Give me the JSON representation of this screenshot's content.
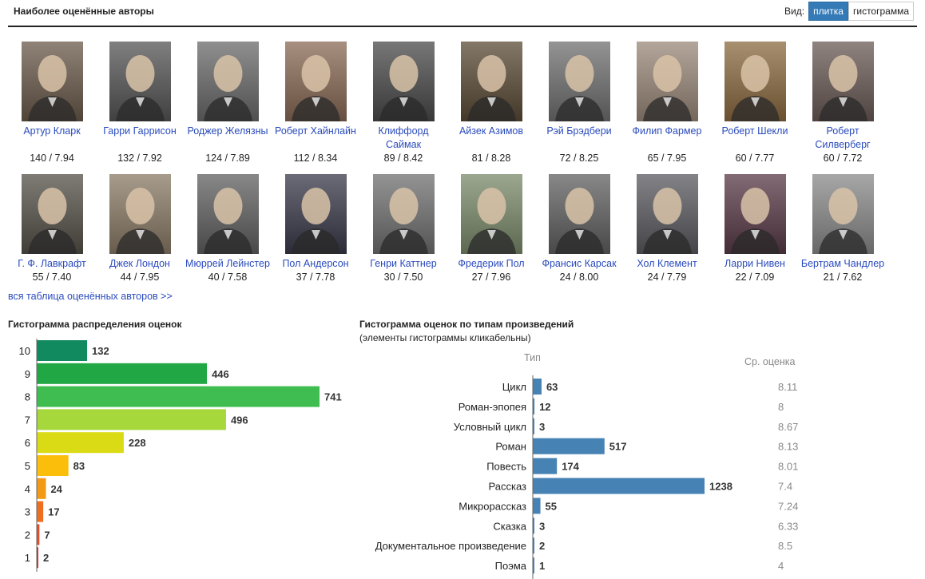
{
  "header": {
    "title": "Наиболее оценённые авторы",
    "view_label": "Вид:",
    "view_tile": "плитка",
    "view_hist": "гистограмма"
  },
  "authors": [
    {
      "name": "Артур Кларк",
      "score": "140 / 7.94",
      "tone": "#6a5a4a"
    },
    {
      "name": "Гарри Гаррисон",
      "score": "132 / 7.92",
      "tone": "#555555"
    },
    {
      "name": "Роджер Желязны",
      "score": "124 / 7.89",
      "tone": "#6a6a6a"
    },
    {
      "name": "Роберт Хайнлайн",
      "score": "112 / 8.34",
      "tone": "#8a6a55"
    },
    {
      "name": "Клиффорд Саймак",
      "score": "89 / 8.42",
      "tone": "#4a4a4a"
    },
    {
      "name": "Айзек Азимов",
      "score": "81 / 8.28",
      "tone": "#5a4a35"
    },
    {
      "name": "Рэй Брэдбери",
      "score": "72 / 8.25",
      "tone": "#707070"
    },
    {
      "name": "Филип Фармер",
      "score": "65 / 7.95",
      "tone": "#9a8878"
    },
    {
      "name": "Роберт Шекли",
      "score": "60 / 7.77",
      "tone": "#8a6a40"
    },
    {
      "name": "Роберт Силверберг",
      "score": "60 / 7.72",
      "tone": "#6a5a55"
    },
    {
      "name": "Г. Ф. Лавкрафт",
      "score": "55 / 7.40",
      "tone": "#555048"
    },
    {
      "name": "Джек Лондон",
      "score": "44 / 7.95",
      "tone": "#8a7a66"
    },
    {
      "name": "Мюррей Лейнстер",
      "score": "40 / 7.58",
      "tone": "#606060"
    },
    {
      "name": "Пол Андерсон",
      "score": "37 / 7.78",
      "tone": "#3a3a4a"
    },
    {
      "name": "Генри Каттнер",
      "score": "30 / 7.50",
      "tone": "#707070"
    },
    {
      "name": "Фредерик Пол",
      "score": "27 / 7.96",
      "tone": "#7a8a6a"
    },
    {
      "name": "Франсис Карсак",
      "score": "24 / 8.00",
      "tone": "#606060"
    },
    {
      "name": "Хол Клемент",
      "score": "24 / 7.79",
      "tone": "#5a5a60"
    },
    {
      "name": "Ларри Нивен",
      "score": "22 / 7.09",
      "tone": "#5a3a48"
    },
    {
      "name": "Бертрам Чандлер",
      "score": "21 / 7.62",
      "tone": "#8a8a8a"
    }
  ],
  "all_link": "вся таблица оценённых авторов >>",
  "hist1": {
    "title": "Гистограмма распределения оценок"
  },
  "hist2": {
    "title": "Гистограмма оценок по типам произведений",
    "subtitle": "(элементы гистограммы кликабельны)",
    "col_type": "Тип",
    "col_avg": "Ср. оценка"
  },
  "chart_data": [
    {
      "type": "bar",
      "orientation": "horizontal",
      "title": "Гистограмма распределения оценок",
      "categories": [
        "10",
        "9",
        "8",
        "7",
        "6",
        "5",
        "4",
        "3",
        "2",
        "1"
      ],
      "values": [
        132,
        446,
        741,
        496,
        228,
        83,
        24,
        17,
        7,
        2
      ],
      "colors": [
        "#108a5e",
        "#22a745",
        "#3fbd50",
        "#a6d83c",
        "#dadb15",
        "#fbbf0b",
        "#f29a16",
        "#ee6f21",
        "#e3502c",
        "#cf3328"
      ]
    },
    {
      "type": "bar",
      "orientation": "horizontal",
      "title": "Гистограмма оценок по типам произведений",
      "categories": [
        "Цикл",
        "Роман-эпопея",
        "Условный цикл",
        "Роман",
        "Повесть",
        "Рассказ",
        "Микрорассказ",
        "Сказка",
        "Документальное произведение",
        "Поэма"
      ],
      "values": [
        63,
        12,
        3,
        517,
        174,
        1238,
        55,
        3,
        2,
        1
      ],
      "avg": [
        "8.11",
        "8",
        "8.67",
        "8.13",
        "8.01",
        "7.4",
        "7.24",
        "6.33",
        "8.5",
        "4"
      ],
      "color": "#4682b4"
    }
  ]
}
